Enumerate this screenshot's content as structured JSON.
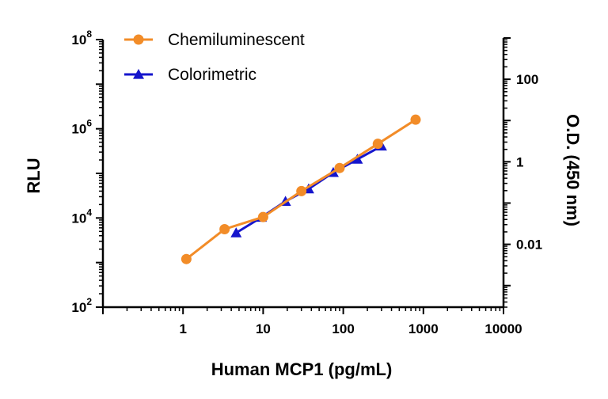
{
  "chart_data": {
    "type": "scatter",
    "x_axis": {
      "label": "Human MCP1 (pg/mL)",
      "scale": "log",
      "range": [
        0.1,
        10000
      ],
      "tick_labels": [
        "1",
        "10",
        "100",
        "1000",
        "10000"
      ]
    },
    "y_axis_left": {
      "label": "RLU",
      "scale": "log",
      "range": [
        100,
        100000000
      ],
      "tick_labels": [
        {
          "base": "10",
          "exp": "2"
        },
        {
          "base": "10",
          "exp": "4"
        },
        {
          "base": "10",
          "exp": "6"
        },
        {
          "base": "10",
          "exp": "8"
        }
      ]
    },
    "y_axis_right": {
      "label": "O.D. (450 nm)",
      "scale": "log",
      "range": [
        0.0003,
        1000
      ],
      "tick_labels": [
        "0.01",
        "1",
        "100"
      ]
    },
    "legend": {
      "placement": "top-left"
    },
    "grid": false,
    "series": [
      {
        "name": "Chemiluminescent",
        "axis": "left",
        "marker": "circle",
        "color": "#F28C28",
        "x": [
          1.1,
          3.3,
          10,
          30,
          90,
          270,
          800
        ],
        "y": [
          1200,
          5600,
          10500,
          40000,
          132000,
          460000,
          1600000
        ]
      },
      {
        "name": "Colorimetric",
        "axis": "right",
        "marker": "triangle",
        "color": "#1515CC",
        "x": [
          4.6,
          9.5,
          19,
          37,
          75,
          150,
          300
        ],
        "y": [
          0.019,
          0.045,
          0.11,
          0.22,
          0.55,
          1.15,
          2.4
        ]
      }
    ]
  }
}
